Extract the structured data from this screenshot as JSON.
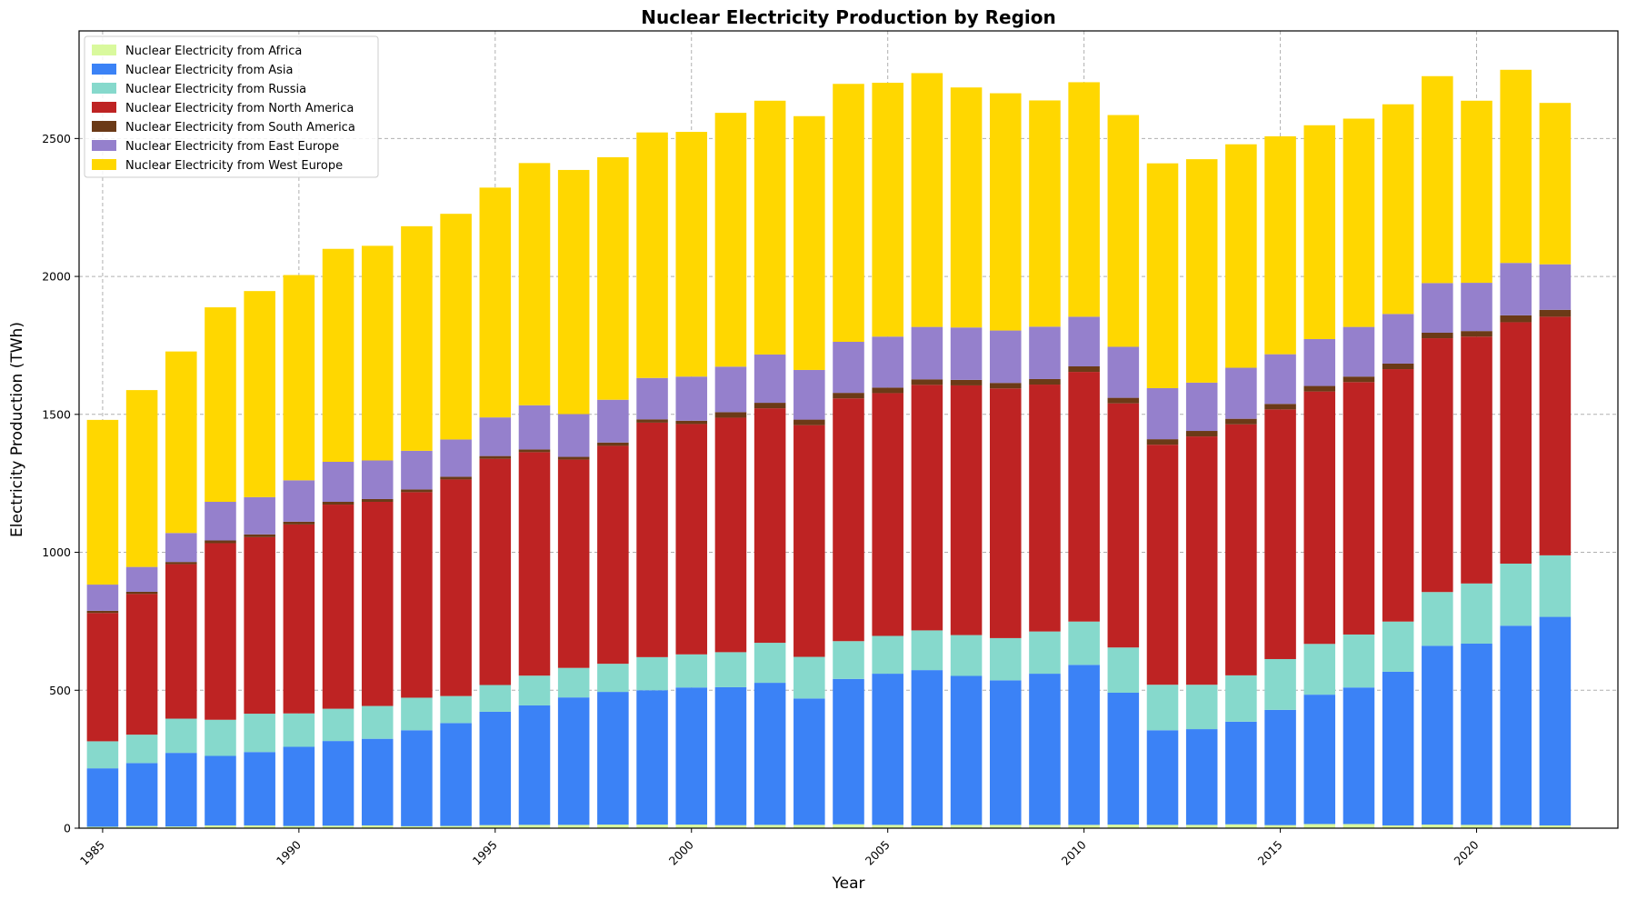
{
  "chart_data": {
    "type": "bar",
    "stacked": true,
    "title": "Nuclear Electricity Production by Region",
    "xlabel": "Year",
    "ylabel": "Electricity Production (TWh)",
    "x": [
      1985,
      1986,
      1987,
      1988,
      1989,
      1990,
      1991,
      1992,
      1993,
      1994,
      1995,
      1996,
      1997,
      1998,
      1999,
      2000,
      2001,
      2002,
      2003,
      2004,
      2005,
      2006,
      2007,
      2008,
      2009,
      2010,
      2011,
      2012,
      2013,
      2014,
      2015,
      2016,
      2017,
      2018,
      2019,
      2020,
      2021,
      2022
    ],
    "xlim": [
      1984.4,
      2023.6
    ],
    "ylim": [
      0,
      2890
    ],
    "x_ticks": [
      1985,
      1990,
      1995,
      2000,
      2005,
      2010,
      2015,
      2020
    ],
    "y_ticks": [
      0,
      500,
      1000,
      1500,
      2000,
      2500
    ],
    "grid": true,
    "legend_position": "upper-left",
    "series": [
      {
        "name": "Nuclear Electricity from Africa",
        "color": "#d9f99d",
        "values": [
          5,
          8,
          6,
          10,
          10,
          8,
          9,
          10,
          7,
          8,
          11,
          12,
          12,
          13,
          13,
          13,
          11,
          12,
          12,
          14,
          12,
          10,
          12,
          12,
          12,
          12,
          13,
          12,
          12,
          14,
          11,
          15,
          15,
          10,
          13,
          12,
          11,
          10
        ]
      },
      {
        "name": "Nuclear Electricity from Asia",
        "color": "#3b82f6",
        "values": [
          212,
          228,
          267,
          252,
          266,
          287,
          307,
          314,
          348,
          373,
          411,
          433,
          462,
          481,
          487,
          497,
          500,
          515,
          458,
          527,
          548,
          563,
          540,
          524,
          548,
          580,
          478,
          343,
          347,
          372,
          418,
          469,
          495,
          557,
          648,
          657,
          723,
          756
        ]
      },
      {
        "name": "Nuclear Electricity from Russia",
        "color": "#86d9cc",
        "values": [
          98,
          103,
          124,
          131,
          139,
          121,
          117,
          119,
          118,
          98,
          97,
          108,
          107,
          102,
          120,
          120,
          127,
          145,
          151,
          137,
          137,
          144,
          148,
          153,
          153,
          157,
          164,
          165,
          161,
          168,
          184,
          184,
          192,
          182,
          195,
          218,
          225,
          223
        ]
      },
      {
        "name": "Nuclear Electricity from North America",
        "color": "#be2323",
        "values": [
          465,
          510,
          560,
          640,
          640,
          685,
          740,
          740,
          745,
          785,
          820,
          810,
          755,
          790,
          850,
          835,
          850,
          850,
          840,
          880,
          880,
          890,
          905,
          905,
          895,
          905,
          885,
          870,
          900,
          910,
          905,
          915,
          915,
          915,
          920,
          895,
          875,
          865
        ]
      },
      {
        "name": "Nuclear Electricity from South America",
        "color": "#6b3a17",
        "values": [
          8,
          8,
          8,
          10,
          10,
          10,
          10,
          10,
          10,
          10,
          10,
          10,
          10,
          12,
          12,
          12,
          20,
          20,
          20,
          20,
          20,
          20,
          20,
          20,
          20,
          20,
          20,
          20,
          20,
          20,
          20,
          20,
          20,
          20,
          20,
          20,
          25,
          25
        ]
      },
      {
        "name": "Nuclear Electricity from East Europe",
        "color": "#9580cc",
        "values": [
          95,
          90,
          105,
          140,
          135,
          150,
          145,
          140,
          140,
          135,
          140,
          160,
          155,
          155,
          150,
          160,
          165,
          175,
          180,
          185,
          185,
          190,
          190,
          190,
          190,
          180,
          185,
          185,
          175,
          185,
          180,
          170,
          180,
          180,
          180,
          175,
          190,
          165
        ]
      },
      {
        "name": "Nuclear Electricity from West Europe",
        "color": "#ffd700",
        "values": [
          597,
          641,
          658,
          705,
          747,
          744,
          772,
          778,
          814,
          818,
          833,
          878,
          885,
          879,
          890,
          887,
          920,
          920,
          920,
          935,
          920,
          920,
          870,
          860,
          820,
          850,
          840,
          815,
          810,
          810,
          790,
          775,
          755,
          760,
          750,
          660,
          700,
          585
        ]
      }
    ]
  }
}
